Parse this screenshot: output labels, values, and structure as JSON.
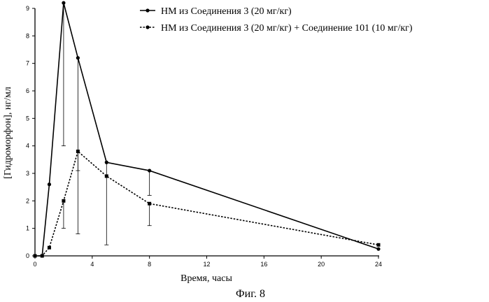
{
  "chart_data": {
    "type": "line",
    "caption": "Фиг. 8",
    "xlabel": "Время, часы",
    "ylabel": "[Гидроморфон], нг/мл",
    "xlim": [
      0,
      24
    ],
    "ylim": [
      0,
      9
    ],
    "xticks": [
      0,
      4,
      8,
      12,
      16,
      20,
      24
    ],
    "yticks": [
      0,
      1,
      2,
      3,
      4,
      5,
      6,
      7,
      8,
      9
    ],
    "legend_position": "top-right",
    "grid": false,
    "series": [
      {
        "name": "НМ из Соединения 3 (20 мг/кг)",
        "style": "solid",
        "color": "#000000",
        "x": [
          0,
          0.5,
          1,
          2,
          3,
          5,
          8,
          24
        ],
        "y": [
          0,
          0,
          2.6,
          9.2,
          7.2,
          3.4,
          3.1,
          0.25
        ],
        "error_low": [
          null,
          null,
          null,
          4.0,
          3.1,
          0.4,
          2.2,
          null
        ]
      },
      {
        "name": "НМ из Соединения 3 (20 мг/кг) + Соединение 101 (10 мг/кг)",
        "style": "dotted",
        "color": "#000000",
        "x": [
          0,
          0.5,
          1,
          2,
          3,
          5,
          8,
          24
        ],
        "y": [
          0,
          0,
          0.3,
          2.0,
          3.8,
          2.9,
          1.9,
          0.4
        ],
        "error_low": [
          null,
          null,
          null,
          1.0,
          0.8,
          null,
          1.1,
          null
        ]
      }
    ]
  }
}
